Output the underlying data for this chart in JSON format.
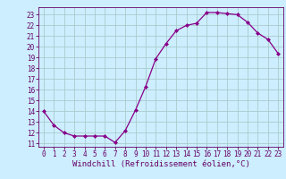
{
  "x": [
    0,
    1,
    2,
    3,
    4,
    5,
    6,
    7,
    8,
    9,
    10,
    11,
    12,
    13,
    14,
    15,
    16,
    17,
    18,
    19,
    20,
    21,
    22,
    23
  ],
  "y": [
    14.0,
    12.7,
    12.0,
    11.7,
    11.7,
    11.7,
    11.7,
    11.1,
    12.2,
    14.1,
    16.3,
    18.9,
    20.3,
    21.5,
    22.0,
    22.2,
    23.2,
    23.2,
    23.1,
    23.0,
    22.3,
    21.3,
    20.7,
    19.4
  ],
  "xlabel": "Windchill (Refroidissement éolien,°C)",
  "ylim": [
    10.7,
    23.7
  ],
  "xlim": [
    -0.5,
    23.5
  ],
  "yticks": [
    11,
    12,
    13,
    14,
    15,
    16,
    17,
    18,
    19,
    20,
    21,
    22,
    23
  ],
  "xticks": [
    0,
    1,
    2,
    3,
    4,
    5,
    6,
    7,
    8,
    9,
    10,
    11,
    12,
    13,
    14,
    15,
    16,
    17,
    18,
    19,
    20,
    21,
    22,
    23
  ],
  "line_color": "#880088",
  "marker": "D",
  "marker_size": 2.0,
  "bg_color": "#cceeff",
  "grid_color": "#aacccc",
  "xlabel_fontsize": 6.5,
  "tick_fontsize": 5.5,
  "label_color": "#660066"
}
